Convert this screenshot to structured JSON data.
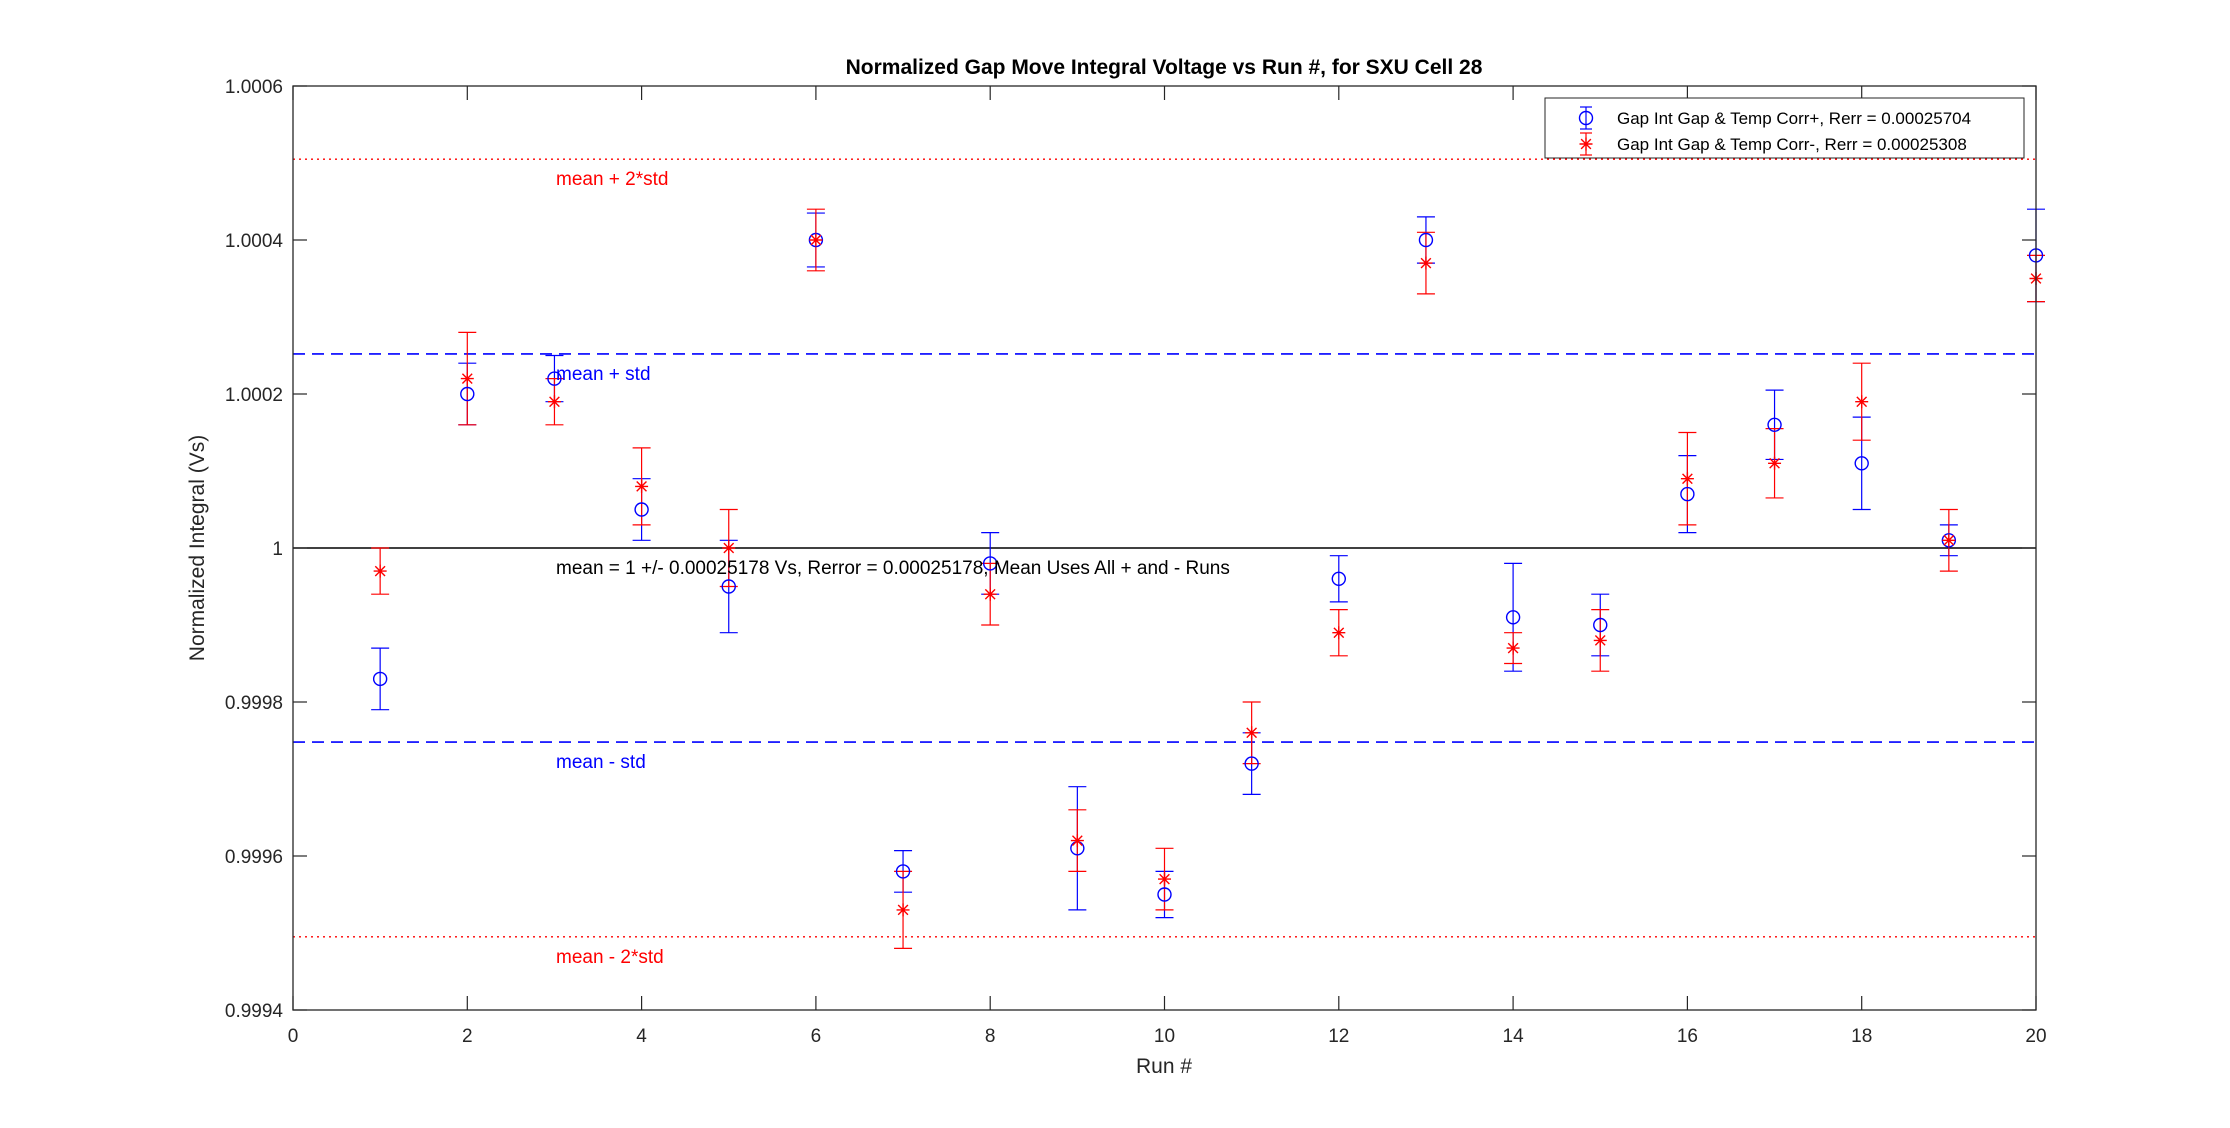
{
  "chart_data": {
    "type": "scatter",
    "title": "Normalized Gap Move Integral Voltage vs Run #, for SXU Cell 28",
    "xlabel": "Run #",
    "ylabel": "Normalized Integral (Vs)",
    "xlim": [
      0,
      20
    ],
    "ylim": [
      0.9994,
      1.0006
    ],
    "x_ticks": [
      0,
      2,
      4,
      6,
      8,
      10,
      12,
      14,
      16,
      18,
      20
    ],
    "y_ticks": [
      0.9994,
      0.9996,
      0.9998,
      1.0,
      1.0002,
      1.0004,
      1.0006
    ],
    "y_tick_labels": [
      "0.9994",
      "0.9996",
      "0.9998",
      "1",
      "1.0002",
      "1.0004",
      "1.0006"
    ],
    "grid": false,
    "legend_position": "top-right",
    "colors": {
      "blue": "#0000ff",
      "red": "#ff0000",
      "mean": "#000000"
    },
    "series": [
      {
        "name": "Gap Int Gap & Temp Corr+, Rerr = 0.00025704",
        "marker": "circle",
        "color": "#0000ff",
        "x": [
          1,
          2,
          3,
          4,
          5,
          6,
          7,
          8,
          9,
          10,
          11,
          12,
          13,
          14,
          15,
          16,
          17,
          18,
          19,
          20
        ],
        "y": [
          0.99983,
          1.0002,
          1.00022,
          1.00005,
          0.99995,
          1.0004,
          0.99958,
          0.99998,
          0.99961,
          0.99955,
          0.99972,
          0.99996,
          1.0004,
          0.99991,
          0.9999,
          1.00007,
          1.00016,
          1.00011,
          1.00001,
          1.00038
        ],
        "err": [
          4e-05,
          4e-05,
          3e-05,
          4e-05,
          6e-05,
          3.5e-05,
          2.7e-05,
          4e-05,
          8e-05,
          3e-05,
          4e-05,
          3e-05,
          3e-05,
          7e-05,
          4e-05,
          5e-05,
          4.5e-05,
          6e-05,
          2e-05,
          6e-05
        ]
      },
      {
        "name": "Gap Int Gap & Temp  Corr-, Rerr = 0.00025308",
        "marker": "asterisk",
        "color": "#ff0000",
        "x": [
          1,
          2,
          3,
          4,
          5,
          6,
          7,
          8,
          9,
          10,
          11,
          12,
          13,
          14,
          15,
          16,
          17,
          18,
          19,
          20
        ],
        "y": [
          0.99997,
          1.00022,
          1.00019,
          1.00008,
          1.0,
          1.0004,
          0.99953,
          0.99994,
          0.99962,
          0.99957,
          0.99976,
          0.99989,
          1.00037,
          0.99987,
          0.99988,
          1.00009,
          1.00011,
          1.00019,
          1.00001,
          1.00035
        ],
        "err": [
          3e-05,
          6e-05,
          3e-05,
          5e-05,
          5e-05,
          4e-05,
          5e-05,
          4e-05,
          4e-05,
          4e-05,
          4e-05,
          3e-05,
          4e-05,
          2e-05,
          4e-05,
          6e-05,
          4.5e-05,
          5e-05,
          4e-05,
          3e-05
        ]
      }
    ],
    "reference_lines": [
      {
        "label": "mean + 2*std",
        "y": 1.000505,
        "style": "dotted",
        "color": "#ff0000"
      },
      {
        "label": "mean + std",
        "y": 1.000252,
        "style": "dashed",
        "color": "#0000ff"
      },
      {
        "label": "mean = 1 +/- 0.00025178 Vs, Rerror = 0.00025178, Mean Uses All + and - Runs",
        "y": 1.0,
        "style": "solid",
        "color": "#000000"
      },
      {
        "label": "mean - std",
        "y": 0.999748,
        "style": "dashed",
        "color": "#0000ff"
      },
      {
        "label": "mean - 2*std",
        "y": 0.999495,
        "style": "dotted",
        "color": "#ff0000"
      }
    ]
  }
}
